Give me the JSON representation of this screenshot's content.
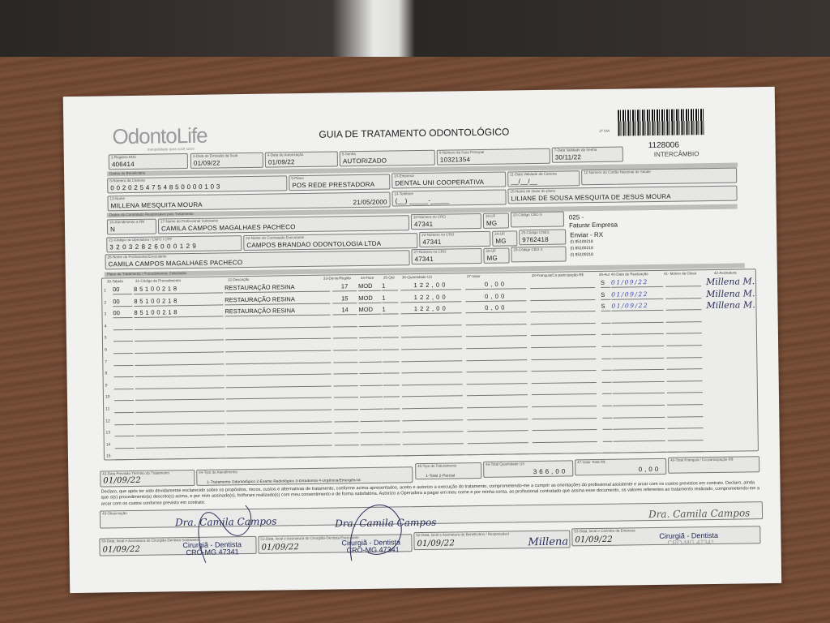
{
  "header": {
    "logo": "OdontoLife",
    "logo_tagline": "tranquilidade para você sorrir",
    "title": "GUIA DE TRATAMENTO ODONTOLÓGICO",
    "via": "2ª VIA",
    "guide_code": "1128006",
    "guide_type": "INTERCÂMBIO"
  },
  "fields": {
    "f1": {
      "label": "1-Registro ANS",
      "value": "406414"
    },
    "f3": {
      "label": "3-Data de Emissão da Guia",
      "value": "01/09/22"
    },
    "f4": {
      "label": "4-Data de Autorização",
      "value": "01/09/22"
    },
    "f5": {
      "label": "5-Senha",
      "value": "AUTORIZADO"
    },
    "f6": {
      "label": "6-Número da Guia Principal",
      "value": "10321354"
    },
    "f7": {
      "label": "7-Data Validade da Senha",
      "value": "30/11/22"
    },
    "f8": {
      "label": "8-Número da Carteira",
      "value": "0020254754850000103"
    },
    "f9": {
      "label": "9-Plano",
      "value": "POS REDE PRESTADORA"
    },
    "f10": {
      "label": "10-Empresa",
      "value": "DENTAL UNI  COOPERATIVA"
    },
    "f11": {
      "label": "11-Data Validade da Carteira",
      "value": "__/__/__"
    },
    "f12": {
      "label": "12-Número do Cartão Nacional de Saúde",
      "value": ""
    },
    "f13": {
      "label": "13-Nome",
      "value": "MILLENA MESQUITA MOURA",
      "birth": "21/05/2000"
    },
    "f14": {
      "label": "14-Telefone",
      "value": "(__) _____-_____"
    },
    "f15": {
      "label": "15-Nome do titular do plano",
      "value": "LILIANE DE SOUSA MESQUITA DE JESUS MOURA"
    },
    "f16": {
      "label": "16-Atendimento a RN",
      "value": "N"
    },
    "f17": {
      "label": "17-Nome do Profissional Solicitante",
      "value": "CAMILA CAMPOS MAGALHAES PACHECO"
    },
    "f18": {
      "label": "18-Número no CRO",
      "value": "47341"
    },
    "f19": {
      "label": "19-UF",
      "value": "MG"
    },
    "f20": {
      "label": "20-Código CBO S",
      "value": ""
    },
    "f21": {
      "label": "21-Código na Operadora / CNPJ / CPF",
      "value": "32032826000129"
    },
    "f22": {
      "label": "22-Nome do Contratado Executante",
      "value": "CAMPOS BRANDAO ODONTOLOGIA LTDA"
    },
    "f23": {
      "label": "23-Número no CRO",
      "value": "47341"
    },
    "f24": {
      "label": "24-UF",
      "value": "MG"
    },
    "f25": {
      "label": "25-Código CNES",
      "value": "9762418"
    },
    "f26": {
      "label": "26-Nome do Profissional Executante",
      "value": "CAMILA CAMPOS MAGALHAES PACHECO"
    },
    "f27": {
      "label": "27-Número no CRO",
      "value": "47341"
    },
    "f28": {
      "label": "28-UF",
      "value": "MG"
    },
    "f29": {
      "label": "29-Código CBO S",
      "value": ""
    }
  },
  "sections": {
    "beneficiario": "Dados do Beneficiário",
    "contratado": "Dados do Contratado Responsável pelo Tratamento",
    "plano": "Plano de Tratamento / Procedimentos Solicitados"
  },
  "notes": [
    "025 -",
    "Faturar Empresa",
    "Enviar - RX",
    "(I) 85100218",
    "(I) 85100218",
    "(I) 85100218"
  ],
  "columns": [
    "30-Tabela",
    "31-Código do Procedimento",
    "32-Descrição",
    "33-Dente/Região",
    "34-Face",
    "35-Qtd",
    "36-Quantidade US",
    "37-Valor",
    "38-Franquia/Co-participação R$",
    "39-Aut",
    "40-Data de Realização",
    "41- Motivo da Glosa",
    "42-Assinatura"
  ],
  "procedures": [
    {
      "n": "1",
      "tabela": "00",
      "codigo": "85100218",
      "descricao": "RESTAURAÇÃO RESINA",
      "dente": "17",
      "face": "MOD",
      "qtd": "1",
      "us": "122,00",
      "valor": "0,00",
      "aut": "S",
      "data": "01/09/22",
      "assinatura": "Millena M."
    },
    {
      "n": "2",
      "tabela": "00",
      "codigo": "85100218",
      "descricao": "RESTAURAÇÃO RESINA",
      "dente": "15",
      "face": "MOD",
      "qtd": "1",
      "us": "122,00",
      "valor": "0,00",
      "aut": "S",
      "data": "01/09/22",
      "assinatura": "Millena M."
    },
    {
      "n": "3",
      "tabela": "00",
      "codigo": "85100218",
      "descricao": "RESTAURAÇÃO RESINA",
      "dente": "14",
      "face": "MOD",
      "qtd": "1",
      "us": "122,00",
      "valor": "0,00",
      "aut": "S",
      "data": "01/09/22",
      "assinatura": "Millena M."
    },
    {
      "n": "4"
    },
    {
      "n": "5"
    },
    {
      "n": "6"
    },
    {
      "n": "7"
    },
    {
      "n": "8"
    },
    {
      "n": "9"
    },
    {
      "n": "10"
    },
    {
      "n": "11"
    },
    {
      "n": "12"
    },
    {
      "n": "13"
    },
    {
      "n": "14"
    },
    {
      "n": "15"
    }
  ],
  "footer": {
    "f43": {
      "label": "43-Data Previsão Término do Tratamento",
      "value": "01/09/22"
    },
    "f44": {
      "label": "44-Tipo de Atendimento",
      "value": "1-Tratamento Odontológico  2-Exame Radiológico  3-Ortodontia  4-Urgência/Emergência"
    },
    "f45": {
      "label": "45-Tipo de Faturamento",
      "value": "1-Total  2-Parcial"
    },
    "f46": {
      "label": "46-Total Quantidade US",
      "value": "366,00"
    },
    "f47": {
      "label": "47-Valor Total R$",
      "value": "0,00"
    },
    "f48": {
      "label": "48-Total Franquia / Co-participação R$",
      "value": ""
    },
    "declaration": "Declaro, que após ter sido devidamente esclarecido sobre os propósitos, riscos, custos e alternativas de tratamento, conforme acima apresentados, aceito e autorizo a execução do tratamento, comprometendo-me a cumprir as orientações do profissional assistente e arcar com os custos previstos em contrato. Declaro, ainda que o(s) procedimento(s) descrito(s) acima, e por mim assinado(s), foi/foram realizado(s) com meu consentimento e de forma satisfatória. Autorizo a Operadora a pagar em meu nome e por minha conta, ao profissional contratado que assina esse documento, os valores referentes ao tratamento realizado, comprometendo-me a arcar com os custos conforme previsto em contrato.",
    "f49": {
      "label": "49-Observação",
      "value": ""
    },
    "f50": {
      "label": "50-Data, local e Assinatura do Cirurgião-Dentista Solicitante",
      "value": "01/09/22"
    },
    "f51": {
      "label": "51-Data, local e Assinatura do Cirurgião-Dentista Executante",
      "value": "01/09/22"
    },
    "f52": {
      "label": "52-Data, local e Assinatura do Beneficiário / Responsável",
      "value": "01/09/22"
    },
    "f53": {
      "label": "53-Data, local e Carimbo da Empresa",
      "value": "01/09/22"
    }
  },
  "stamps": [
    {
      "name": "Dra. Camila Campos",
      "role": "Cirurgiã - Dentista",
      "cro": "CRO-MG 47341"
    },
    {
      "name": "Dra. Camila Campos",
      "role": "Cirurgiã - Dentista",
      "cro": "CRO-MG 47341"
    },
    {
      "name": "Dra. Camila Campos",
      "role": "Cirurgiã - Dentista",
      "cro": "CRO-MG 47341"
    }
  ],
  "beneficiary_signature": "Millena M."
}
